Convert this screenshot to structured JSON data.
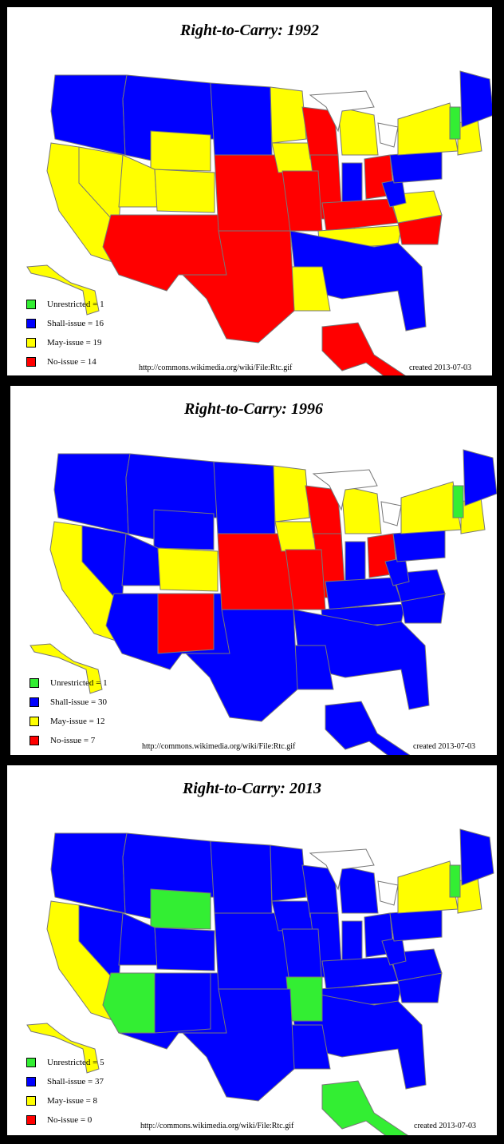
{
  "colors": {
    "unrestricted": "#33ee33",
    "shall": "#0000ff",
    "may": "#ffff00",
    "no": "#ff0000",
    "border": "#777777",
    "lake": "#ffffff"
  },
  "panels": [
    {
      "title": "Right-to-Carry: 1992",
      "legend": [
        {
          "key": "unrestricted",
          "label": "Unrestricted = 1"
        },
        {
          "key": "shall",
          "label": "Shall-issue = 16"
        },
        {
          "key": "may",
          "label": "May-issue = 19"
        },
        {
          "key": "no",
          "label": "No-issue = 14"
        }
      ],
      "url": "http://commons.wikimedia.org/wiki/File:Rtc.gif",
      "created": "created 2013-07-03",
      "regions": {
        "pnw": "shall",
        "mtwest": "shall",
        "wy": "may",
        "ca": "may",
        "nv": "may",
        "ut": "may",
        "co": "may",
        "sw": "no",
        "plainsN": "shall",
        "plainsC": "no",
        "mn": "may",
        "ia": "may",
        "wi": "no",
        "il": "no",
        "mo": "no",
        "mi": "may",
        "in": "shall",
        "oh": "no",
        "ky": "no",
        "tn": "may",
        "south": "shall",
        "la": "may",
        "tx": "no",
        "nc": "no",
        "va": "may",
        "wv": "shall",
        "pa": "shall",
        "ny": "may",
        "ne": "may",
        "vt": "unrestricted",
        "me": "shall",
        "ak": "no",
        "hi": "may"
      }
    },
    {
      "title": "Right-to-Carry: 1996",
      "legend": [
        {
          "key": "unrestricted",
          "label": "Unrestricted = 1"
        },
        {
          "key": "shall",
          "label": "Shall-issue = 30"
        },
        {
          "key": "may",
          "label": "May-issue = 12"
        },
        {
          "key": "no",
          "label": "No-issue = 7"
        }
      ],
      "url": "http://commons.wikimedia.org/wiki/File:Rtc.gif",
      "created": "created 2013-07-03",
      "regions": {
        "pnw": "shall",
        "mtwest": "shall",
        "wy": "shall",
        "ca": "may",
        "nv": "shall",
        "ut": "shall",
        "co": "may",
        "sw": "shall",
        "nm": "no",
        "plainsN": "shall",
        "plainsC": "no",
        "mn": "may",
        "ia": "may",
        "wi": "no",
        "il": "no",
        "mo": "no",
        "mi": "may",
        "in": "shall",
        "oh": "no",
        "ky": "shall",
        "tn": "shall",
        "south": "shall",
        "la": "shall",
        "tx": "shall",
        "nc": "shall",
        "va": "shall",
        "wv": "shall",
        "pa": "shall",
        "ny": "may",
        "ne": "may",
        "vt": "unrestricted",
        "me": "shall",
        "ak": "shall",
        "hi": "may"
      }
    },
    {
      "title": "Right-to-Carry: 2013",
      "legend": [
        {
          "key": "unrestricted",
          "label": "Unrestricted = 5"
        },
        {
          "key": "shall",
          "label": "Shall-issue = 37"
        },
        {
          "key": "may",
          "label": "May-issue = 8"
        },
        {
          "key": "no",
          "label": "No-issue = 0"
        }
      ],
      "url": "http://commons.wikimedia.org/wiki/File:Rtc.gif",
      "created": "created 2013-07-03",
      "regions": {
        "pnw": "shall",
        "mtwest": "shall",
        "wy": "unrestricted",
        "ca": "may",
        "nv": "shall",
        "ut": "shall",
        "co": "shall",
        "sw": "shall",
        "az": "unrestricted",
        "nm": "shall",
        "plainsN": "shall",
        "plainsC": "shall",
        "mn": "shall",
        "ia": "shall",
        "wi": "shall",
        "il": "shall",
        "mo": "shall",
        "mi": "shall",
        "in": "shall",
        "oh": "shall",
        "ky": "shall",
        "tn": "shall",
        "south": "shall",
        "ar": "unrestricted",
        "la": "shall",
        "tx": "shall",
        "nc": "shall",
        "va": "shall",
        "wv": "shall",
        "pa": "shall",
        "ny": "may",
        "ne": "may",
        "vt": "unrestricted",
        "me": "shall",
        "ak": "unrestricted",
        "hi": "may"
      }
    }
  ]
}
